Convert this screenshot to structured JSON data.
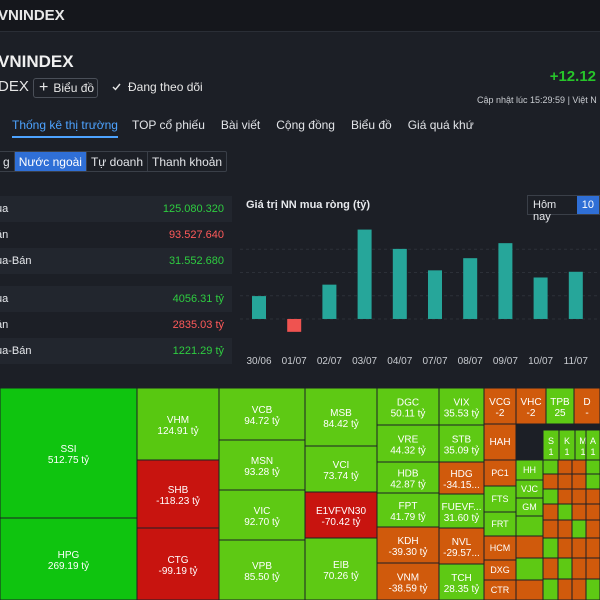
{
  "topbar": {
    "title": "VNINDEX"
  },
  "header": {
    "title": "VNINDEX",
    "subtitle": "DEX",
    "chart_button": "Biểu đồ",
    "follow_label": "Đang theo dõi",
    "change": "+12.12",
    "updated": "Cập nhật lúc  15:29:59 | Việt N"
  },
  "main_tabs": [
    "Thống kê thị trường",
    "TOP cổ phiếu",
    "Bài viết",
    "Cộng đồng",
    "Biểu đồ",
    "Giá quá khứ"
  ],
  "sub_tabs": [
    "g",
    "Nước ngoài",
    "Tự doanh",
    "Thanh khoản"
  ],
  "stats": [
    {
      "label": "ua",
      "value": "125.080.320",
      "color": "green"
    },
    {
      "label": "án",
      "value": "93.527.640",
      "color": "red"
    },
    {
      "label": "ua-Bán",
      "value": "31.552.680",
      "color": "green"
    },
    {
      "label": "ua",
      "value": "4056.31 tỷ",
      "color": "green"
    },
    {
      "label": "án",
      "value": "2835.03 tỷ",
      "color": "red"
    },
    {
      "label": "ua-Bán",
      "value": "1221.29 tỷ",
      "color": "green"
    }
  ],
  "chart_title": "Giá trị NN mua ròng (tỷ)",
  "range_buttons": [
    "Hôm nay",
    "10"
  ],
  "chart_data": {
    "type": "bar",
    "categories": [
      "30/06",
      "01/07",
      "02/07",
      "03/07",
      "04/07",
      "07/07",
      "08/07",
      "09/07",
      "10/07",
      "11/07"
    ],
    "values": [
      320,
      -180,
      480,
      1250,
      980,
      680,
      850,
      1060,
      580,
      660
    ],
    "colors": {
      "positive": "#26a69a",
      "negative": "#ef5350"
    },
    "ylim": [
      -350,
      1300
    ]
  },
  "treemap": [
    {
      "ticker": "SSI",
      "value": "512.75 tỷ",
      "color": "#0fc40f",
      "text": "#ffffff"
    },
    {
      "ticker": "HPG",
      "value": "269.19 tỷ",
      "color": "#0fc40f",
      "text": "#ffffff"
    },
    {
      "ticker": "VHM",
      "value": "124.91 tỷ",
      "color": "#58c811",
      "text": "#ffffff"
    },
    {
      "ticker": "SHB",
      "value": "-118.23 tỷ",
      "color": "#c8140f",
      "text": "#ffffff"
    },
    {
      "ticker": "CTG",
      "value": "-99.19 tỷ",
      "color": "#c8140f",
      "text": "#ffffff"
    },
    {
      "ticker": "VCB",
      "value": "94.72 tỷ",
      "color": "#5ec914",
      "text": "#ffffff"
    },
    {
      "ticker": "MSN",
      "value": "93.28 tỷ",
      "color": "#5ec914",
      "text": "#ffffff"
    },
    {
      "ticker": "VIC",
      "value": "92.70 tỷ",
      "color": "#5ec914",
      "text": "#ffffff"
    },
    {
      "ticker": "VPB",
      "value": "85.50 tỷ",
      "color": "#5ec914",
      "text": "#ffffff"
    },
    {
      "ticker": "MSB",
      "value": "84.42 tỷ",
      "color": "#5ec914",
      "text": "#ffffff"
    },
    {
      "ticker": "VCI",
      "value": "73.74 tỷ",
      "color": "#5ec914",
      "text": "#ffffff"
    },
    {
      "ticker": "E1VFVN30",
      "value": "-70.42 tỷ",
      "color": "#c8140f",
      "text": "#ffffff"
    },
    {
      "ticker": "EIB",
      "value": "70.26 tỷ",
      "color": "#5ec914",
      "text": "#ffffff"
    },
    {
      "ticker": "DGC",
      "value": "50.11 tỷ",
      "color": "#5ec914",
      "text": "#ffffff"
    },
    {
      "ticker": "VRE",
      "value": "44.32 tỷ",
      "color": "#5ec914",
      "text": "#ffffff"
    },
    {
      "ticker": "HDB",
      "value": "42.87 tỷ",
      "color": "#5ec914",
      "text": "#ffffff"
    },
    {
      "ticker": "FPT",
      "value": "41.79 tỷ",
      "color": "#5ec914",
      "text": "#ffffff"
    },
    {
      "ticker": "KDH",
      "value": "-39.30 tỷ",
      "color": "#d05a0c",
      "text": "#ffffff"
    },
    {
      "ticker": "VNM",
      "value": "-38.59 tỷ",
      "color": "#d05a0c",
      "text": "#ffffff"
    },
    {
      "ticker": "VIX",
      "value": "35.53 tỷ",
      "color": "#5ec914",
      "text": "#ffffff"
    },
    {
      "ticker": "STB",
      "value": "35.09 tỷ",
      "color": "#5ec914",
      "text": "#ffffff"
    },
    {
      "ticker": "HDG",
      "value": "-34.15...",
      "color": "#d05a0c",
      "text": "#ffffff"
    },
    {
      "ticker": "FUEVF...",
      "value": "31.60 tỷ",
      "color": "#5ec914",
      "text": "#ffffff"
    },
    {
      "ticker": "NVL",
      "value": "-29.57...",
      "color": "#d05a0c",
      "text": "#ffffff"
    },
    {
      "ticker": "TCH",
      "value": "28.35 tỷ",
      "color": "#5ec914",
      "text": "#ffffff"
    },
    {
      "ticker": "VCG",
      "value": "-2",
      "color": "#d05a0c",
      "text": "#ffffff"
    },
    {
      "ticker": "VHC",
      "value": "-2",
      "color": "#d05a0c",
      "text": "#ffffff"
    },
    {
      "ticker": "TPB",
      "value": "25",
      "color": "#5ec914",
      "text": "#ffffff"
    },
    {
      "ticker": "D",
      "value": "-",
      "color": "#d05a0c",
      "text": "#ffffff"
    },
    {
      "ticker": "HAH",
      "value": "",
      "color": "#d05a0c",
      "text": "#ffffff"
    },
    {
      "ticker": "S",
      "value": "1",
      "color": "#5ec914",
      "text": "#ffffff"
    },
    {
      "ticker": "K",
      "value": "1",
      "color": "#5ec914",
      "text": "#ffffff"
    },
    {
      "ticker": "M",
      "value": "1",
      "color": "#5ec914",
      "text": "#ffffff"
    },
    {
      "ticker": "A",
      "value": "1",
      "color": "#5ec914",
      "text": "#ffffff"
    },
    {
      "ticker": "PC1",
      "value": "",
      "color": "#d05a0c",
      "text": "#ffffff"
    },
    {
      "ticker": "HH",
      "value": "",
      "color": "#5ec914",
      "text": "#ffffff"
    },
    {
      "ticker": "VJC",
      "value": "",
      "color": "#5ec914",
      "text": "#ffffff"
    },
    {
      "ticker": "FTS",
      "value": "",
      "color": "#5ec914",
      "text": "#ffffff"
    },
    {
      "ticker": "GM",
      "value": "",
      "color": "#5ec914",
      "text": "#ffffff"
    },
    {
      "ticker": "FRT",
      "value": "",
      "color": "#5ec914",
      "text": "#ffffff"
    },
    {
      "ticker": "HCM",
      "value": "",
      "color": "#d05a0c",
      "text": "#ffffff"
    },
    {
      "ticker": "DXG",
      "value": "",
      "color": "#d05a0c",
      "text": "#ffffff"
    },
    {
      "ticker": "CTR",
      "value": "",
      "color": "#d05a0c",
      "text": "#ffffff"
    }
  ]
}
